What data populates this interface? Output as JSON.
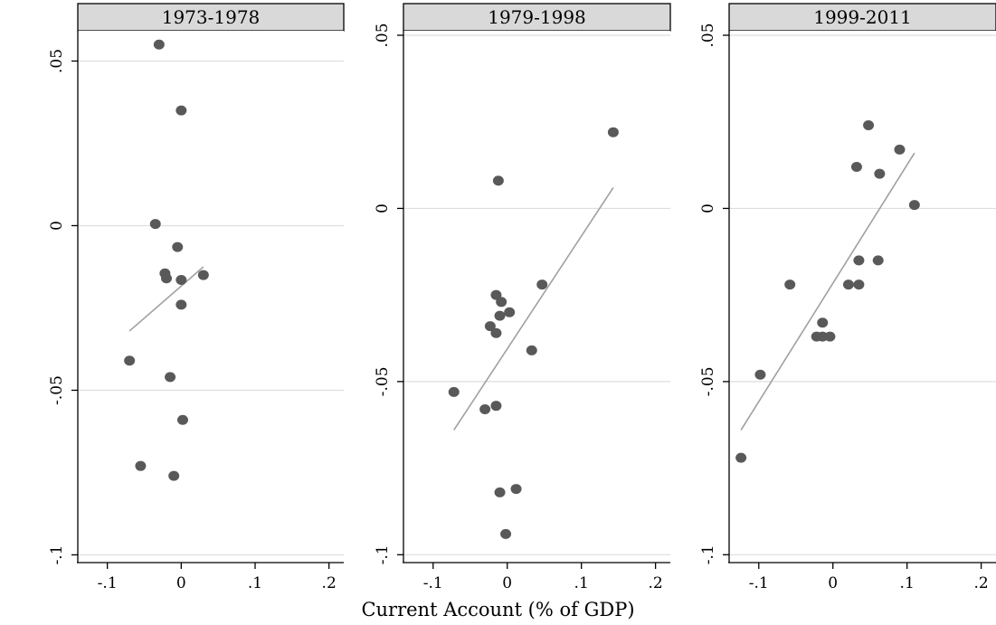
{
  "chart_data": [
    {
      "type": "scatter",
      "title": "1973-1978",
      "x": [
        -0.03,
        0.0,
        -0.035,
        -0.005,
        -0.022,
        -0.02,
        0.0,
        0.03,
        0.0,
        -0.07,
        -0.015,
        0.002,
        -0.055,
        -0.01
      ],
      "y": [
        0.055,
        0.035,
        0.0005,
        -0.0065,
        -0.0145,
        -0.016,
        -0.0165,
        -0.015,
        -0.024,
        -0.041,
        -0.046,
        -0.059,
        -0.073,
        -0.076
      ],
      "fit_line": {
        "x": [
          -0.07,
          0.03
        ],
        "y": [
          -0.032,
          -0.0125
        ]
      },
      "xlim": [
        -0.14,
        0.22
      ],
      "ylim": [
        -0.1007,
        0.0592
      ],
      "xticks": [
        -0.1,
        0,
        0.1,
        0.2
      ],
      "xticklabels": [
        "-.1",
        "0",
        ".1",
        ".2"
      ],
      "yticks": [
        0.05,
        0,
        -0.05,
        -0.1
      ],
      "yticklabels": [
        ".05",
        "0",
        "-.05",
        "-.1"
      ],
      "grid": true
    },
    {
      "type": "scatter",
      "title": "1979-1998",
      "x": [
        0.143,
        -0.012,
        -0.015,
        -0.008,
        0.047,
        -0.01,
        0.003,
        -0.023,
        -0.015,
        0.033,
        -0.072,
        -0.03,
        -0.015,
        0.012,
        -0.01,
        -0.002
      ],
      "y": [
        0.022,
        0.008,
        -0.025,
        -0.027,
        -0.022,
        -0.031,
        -0.03,
        -0.034,
        -0.036,
        -0.041,
        -0.053,
        -0.058,
        -0.057,
        -0.081,
        -0.082,
        -0.094
      ],
      "fit_line": {
        "x": [
          -0.072,
          0.143
        ],
        "y": [
          -0.064,
          0.006
        ]
      },
      "xlim": [
        -0.14,
        0.22
      ],
      "ylim": [
        -0.1007,
        0.0513
      ],
      "xticks": [
        -0.1,
        0,
        0.1,
        0.2
      ],
      "xticklabels": [
        "-.1",
        "0",
        ".1",
        ".2"
      ],
      "yticks": [
        0.05,
        0,
        -0.05,
        -0.1
      ],
      "yticklabels": [
        ".05",
        "0",
        "-.05",
        "-.1"
      ],
      "grid": true
    },
    {
      "type": "scatter",
      "title": "1999-2011",
      "x": [
        0.048,
        0.09,
        0.032,
        0.063,
        0.11,
        0.035,
        0.061,
        -0.058,
        0.021,
        0.035,
        -0.014,
        -0.022,
        -0.014,
        -0.004,
        -0.098,
        -0.124
      ],
      "y": [
        0.024,
        0.017,
        0.012,
        0.01,
        0.001,
        -0.015,
        -0.015,
        -0.022,
        -0.022,
        -0.022,
        -0.033,
        -0.037,
        -0.037,
        -0.037,
        -0.048,
        -0.072
      ],
      "fit_line": {
        "x": [
          -0.124,
          0.11
        ],
        "y": [
          -0.064,
          0.016
        ]
      },
      "xlim": [
        -0.14,
        0.22
      ],
      "ylim": [
        -0.1007,
        0.0513
      ],
      "xticks": [
        -0.1,
        0,
        0.1,
        0.2
      ],
      "xticklabels": [
        "-.1",
        "0",
        ".1",
        ".2"
      ],
      "yticks": [
        0.05,
        0,
        -0.05,
        -0.1
      ],
      "yticklabels": [
        ".05",
        "0",
        "-.05",
        "-.1"
      ],
      "grid": true
    }
  ],
  "xlabel": "Current Account (% of GDP)",
  "colors": {
    "points": "#595959",
    "fit_line": "#a0a0a0",
    "grid": "#dedede",
    "strip": "#d9d9d9"
  }
}
